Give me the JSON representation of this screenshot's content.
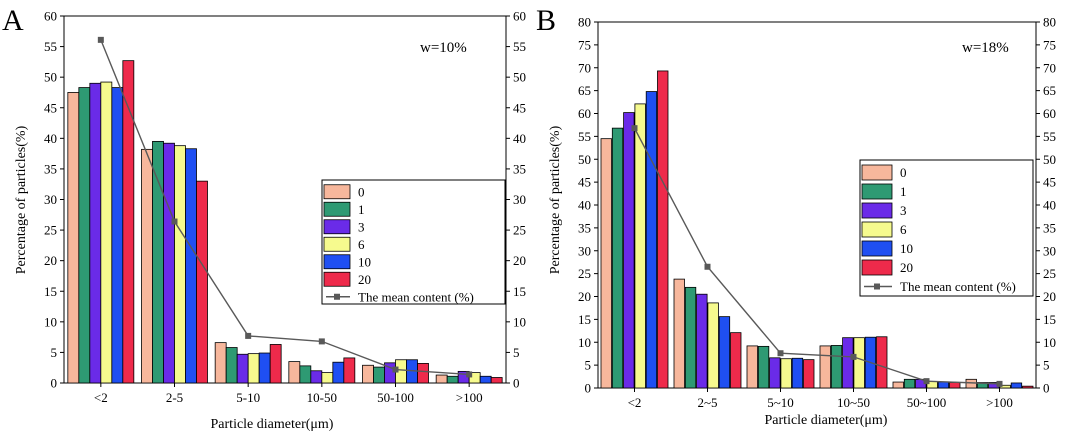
{
  "colors": {
    "s0": "#F7B79C",
    "s1": "#2E9A73",
    "s3": "#6A2BE8",
    "s6": "#F6FA8E",
    "s10": "#1F4FF2",
    "s20": "#EE2A4B",
    "mean": "#595959"
  },
  "chart_data": [
    {
      "type": "bar",
      "panel": "A",
      "annotation": "w=10%",
      "xlabel": "Particle diameter(μm)",
      "ylabel": "Percentage of particles(%)",
      "ylim": [
        0,
        60
      ],
      "yticks": [
        0,
        5,
        10,
        15,
        20,
        25,
        30,
        35,
        40,
        45,
        50,
        55,
        60
      ],
      "categories": [
        "<2",
        "2-5",
        "5-10",
        "10-50",
        "50-100",
        ">100"
      ],
      "series": [
        {
          "name": "0",
          "values": [
            47.5,
            38.2,
            6.6,
            3.5,
            2.9,
            1.3
          ]
        },
        {
          "name": "1",
          "values": [
            48.3,
            39.5,
            5.8,
            2.8,
            2.6,
            1.1
          ]
        },
        {
          "name": "3",
          "values": [
            49.0,
            39.2,
            4.7,
            2.0,
            3.3,
            1.9
          ]
        },
        {
          "name": "6",
          "values": [
            49.2,
            38.8,
            4.8,
            1.7,
            3.8,
            1.7
          ]
        },
        {
          "name": "10",
          "values": [
            48.3,
            38.3,
            4.9,
            3.4,
            3.8,
            1.1
          ]
        },
        {
          "name": "20",
          "values": [
            52.7,
            33.0,
            6.3,
            4.1,
            3.2,
            0.9
          ]
        }
      ],
      "mean_content": {
        "name": "The mean content (%)",
        "values": [
          56.1,
          26.4,
          7.7,
          6.8,
          2.2,
          1.4
        ]
      },
      "legend_position": "center-right"
    },
    {
      "type": "bar",
      "panel": "B",
      "annotation": "w=18%",
      "xlabel": "Particle diameter(μm)",
      "ylabel": "Percentage of particles(%)",
      "ylim": [
        0,
        80
      ],
      "yticks": [
        0,
        5,
        10,
        15,
        20,
        25,
        30,
        35,
        40,
        45,
        50,
        55,
        60,
        65,
        70,
        75,
        80
      ],
      "categories": [
        "<2",
        "2~5",
        "5~10",
        "10~50",
        "50~100",
        ">100"
      ],
      "series": [
        {
          "name": "0",
          "values": [
            54.5,
            23.8,
            9.2,
            9.2,
            1.3,
            1.9
          ]
        },
        {
          "name": "1",
          "values": [
            56.8,
            22.0,
            9.1,
            9.3,
            1.9,
            1.2
          ]
        },
        {
          "name": "3",
          "values": [
            60.2,
            20.5,
            6.6,
            11.0,
            1.9,
            1.2
          ]
        },
        {
          "name": "6",
          "values": [
            62.1,
            18.6,
            6.4,
            11.0,
            1.4,
            0.6
          ]
        },
        {
          "name": "10",
          "values": [
            64.8,
            15.6,
            6.5,
            11.1,
            1.3,
            1.1
          ]
        },
        {
          "name": "20",
          "values": [
            69.3,
            12.1,
            6.2,
            11.2,
            1.2,
            0.4
          ]
        }
      ],
      "mean_content": {
        "name": "The mean content (%)",
        "values": [
          56.8,
          26.5,
          7.6,
          6.8,
          1.5,
          0.9
        ]
      },
      "legend_position": "center-right"
    }
  ]
}
